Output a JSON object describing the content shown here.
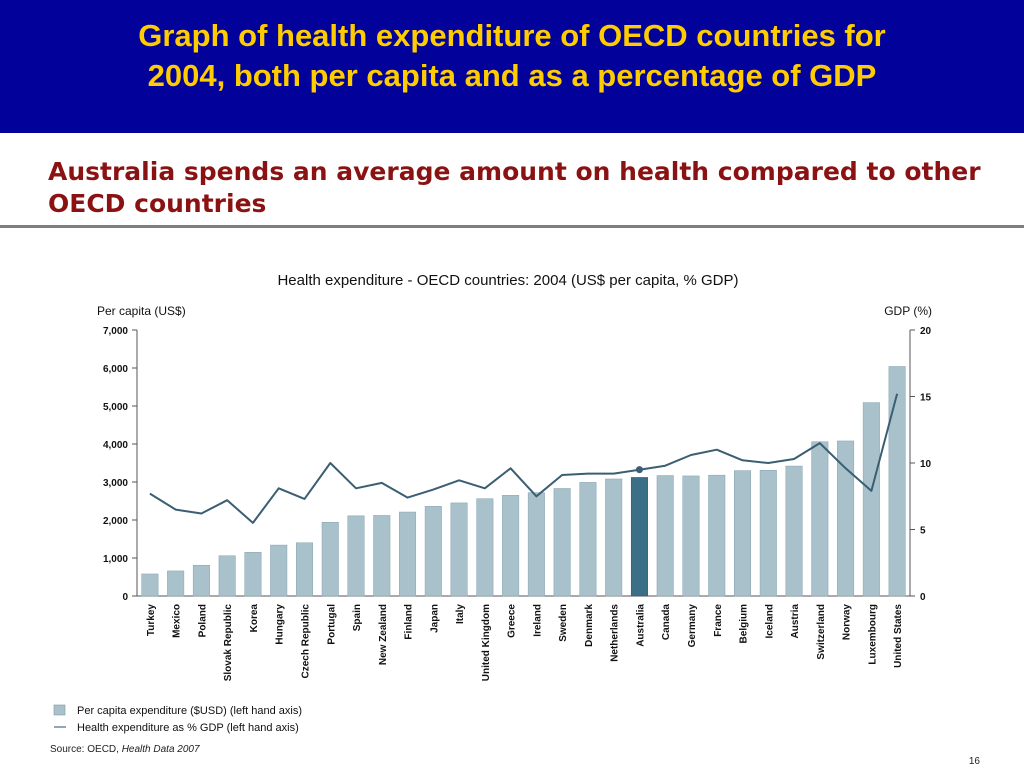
{
  "slide": {
    "title_line1": "Graph of health expenditure of OECD countries for",
    "title_line2": "2004, both per capita and as a percentage of GDP",
    "subtitle_line1": "Australia spends an average amount on health compared to other",
    "subtitle_line2": "OECD countries",
    "source_prefix": "Source: OECD, ",
    "source_italic": "Health Data 2007",
    "page_number": "16",
    "colors": {
      "header_bg": "#02029a",
      "title": "#ffcc00",
      "subtitle": "#8b1212"
    }
  },
  "chart_data": {
    "type": "bar",
    "title": "Health expenditure - OECD countries:  2004 (US$ per capita, % GDP)",
    "ylabel": "Per capita (US$)",
    "y2label": "GDP (%)",
    "ylim": [
      0,
      7000
    ],
    "y2lim": [
      0,
      20
    ],
    "yticks": [
      0,
      1000,
      2000,
      3000,
      4000,
      5000,
      6000,
      7000
    ],
    "ytick_labels": [
      "0",
      "1,000",
      "2,000",
      "3,000",
      "4,000",
      "5,000",
      "6,000",
      "7,000"
    ],
    "y2ticks": [
      0,
      5,
      10,
      15,
      20
    ],
    "y2tick_labels": [
      "0",
      "5",
      "10",
      "15",
      "20"
    ],
    "categories": [
      "Turkey",
      "Mexico",
      "Poland",
      "Slovak Republic",
      "Korea",
      "Hungary",
      "Czech Republic",
      "Portugal",
      "Spain",
      "New Zealand",
      "Finland",
      "Japan",
      "Italy",
      "United Kingdom",
      "Greece",
      "Ireland",
      "Sweden",
      "Denmark",
      "Netherlands",
      "Australia",
      "Canada",
      "Germany",
      "France",
      "Belgium",
      "Iceland",
      "Austria",
      "Switzerland",
      "Norway",
      "Luxembourg",
      "United States"
    ],
    "highlight": "Australia",
    "series": [
      {
        "name": "Per capita expenditure ($USD) (left hand axis)",
        "kind": "bar",
        "axis": "left",
        "color": "#a9c1cb",
        "highlight_color": "#3a6f87",
        "values": [
          580,
          660,
          810,
          1060,
          1150,
          1340,
          1400,
          1940,
          2110,
          2120,
          2210,
          2360,
          2450,
          2560,
          2650,
          2720,
          2830,
          2990,
          3080,
          3120,
          3170,
          3160,
          3180,
          3300,
          3310,
          3420,
          4060,
          4080,
          5090,
          6040
        ]
      },
      {
        "name": "Health expenditure as % GDP (left hand axis)",
        "kind": "line",
        "axis": "right",
        "color": "#3a5e72",
        "values": [
          7.7,
          6.5,
          6.2,
          7.2,
          5.5,
          8.1,
          7.3,
          10.0,
          8.1,
          8.5,
          7.4,
          8.0,
          8.7,
          8.1,
          9.6,
          7.5,
          9.1,
          9.2,
          9.2,
          9.5,
          9.8,
          10.6,
          11.0,
          10.2,
          10.0,
          10.3,
          11.5,
          9.6,
          7.9,
          15.2
        ]
      }
    ],
    "legend_position": "bottom-left",
    "grid": false
  }
}
